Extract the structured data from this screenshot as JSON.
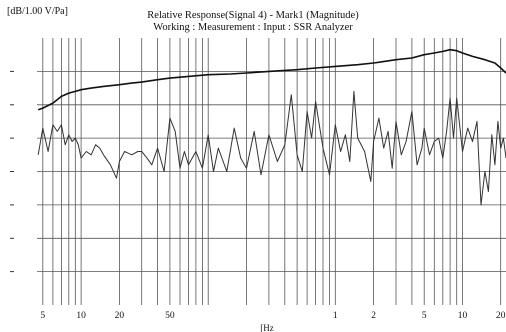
{
  "chart_data": {
    "type": "line",
    "title": "Relative Response(Signal 4) - Mark1 (Magnitude)",
    "subtitle": "Working : Measurement : Input : SSR Analyzer",
    "ylabel": "[dB/1.00 V/Pa]",
    "xlabel": "[Hz",
    "x_scale": "log",
    "xlim": [
      4.5,
      22000
    ],
    "ylim": [
      0,
      8
    ],
    "y_ticks": [
      1,
      2,
      3,
      4,
      5,
      6,
      7
    ],
    "x_tick_labels": [
      {
        "value": 5,
        "label": "5"
      },
      {
        "value": 10,
        "label": "10"
      },
      {
        "value": 20,
        "label": "20"
      },
      {
        "value": 50,
        "label": "50"
      },
      {
        "value": 1000,
        "label": "1"
      },
      {
        "value": 2000,
        "label": "2"
      },
      {
        "value": 5000,
        "label": "5"
      },
      {
        "value": 10000,
        "label": "10"
      },
      {
        "value": 20000,
        "label": "20"
      }
    ],
    "x_grid": [
      5,
      6,
      7,
      8,
      9,
      10,
      20,
      30,
      40,
      50,
      60,
      70,
      80,
      90,
      100,
      200,
      300,
      400,
      500,
      600,
      700,
      800,
      900,
      1000,
      2000,
      3000,
      4000,
      5000,
      6000,
      7000,
      8000,
      9000,
      10000,
      20000
    ],
    "grid": true,
    "series": [
      {
        "color": "#111111",
        "width": 1.6,
        "x": [
          4.6,
          5,
          6,
          7,
          8,
          9,
          10,
          12,
          15,
          20,
          25,
          30,
          40,
          50,
          70,
          100,
          150,
          200,
          300,
          500,
          700,
          1000,
          1500,
          2000,
          3000,
          4000,
          5000,
          6000,
          7000,
          8000,
          9000,
          10000,
          12000,
          15000,
          18000,
          20000,
          22000
        ],
        "y": [
          5.85,
          5.9,
          6.05,
          6.25,
          6.35,
          6.4,
          6.45,
          6.5,
          6.55,
          6.6,
          6.65,
          6.68,
          6.75,
          6.8,
          6.85,
          6.9,
          6.92,
          6.95,
          7.0,
          7.05,
          7.1,
          7.15,
          7.2,
          7.25,
          7.35,
          7.4,
          7.5,
          7.55,
          7.6,
          7.65,
          7.62,
          7.55,
          7.45,
          7.35,
          7.25,
          7.1,
          6.95
        ]
      },
      {
        "color": "#333333",
        "width": 1.0,
        "x": [
          4.6,
          5,
          5.5,
          6,
          6.5,
          7,
          7.5,
          8,
          8.5,
          9,
          9.5,
          10,
          11,
          12,
          13,
          14,
          15,
          17,
          19,
          20,
          22,
          25,
          28,
          30,
          33,
          36,
          40,
          45,
          50,
          55,
          60,
          65,
          70,
          80,
          90,
          100,
          110,
          120,
          140,
          160,
          180,
          200,
          230,
          260,
          300,
          350,
          400,
          450,
          500,
          550,
          600,
          650,
          700,
          800,
          900,
          1000,
          1100,
          1200,
          1300,
          1400,
          1500,
          1700,
          1900,
          2000,
          2200,
          2400,
          2600,
          2800,
          3000,
          3300,
          3600,
          4000,
          4400,
          4800,
          5000,
          5500,
          6000,
          6500,
          7000,
          7500,
          8000,
          8500,
          9000,
          10000,
          11000,
          12000,
          13000,
          14000,
          15000,
          16000,
          17000,
          18000,
          19000,
          20000,
          21000,
          22000
        ],
        "y": [
          4.5,
          5.3,
          4.6,
          5.4,
          5.2,
          5.4,
          4.8,
          5.1,
          4.9,
          5.0,
          4.8,
          4.4,
          4.6,
          4.5,
          4.8,
          4.7,
          4.5,
          4.2,
          3.8,
          4.3,
          4.6,
          4.5,
          4.6,
          4.6,
          4.4,
          4.2,
          4.7,
          4.0,
          5.6,
          5.2,
          4.1,
          4.6,
          4.2,
          4.6,
          4.1,
          5.1,
          4.0,
          4.7,
          4.0,
          5.3,
          4.4,
          4.1,
          5.2,
          3.9,
          5.1,
          4.3,
          4.8,
          6.3,
          4.5,
          4.0,
          5.8,
          5.0,
          6.1,
          4.7,
          3.9,
          5.4,
          4.6,
          5.1,
          4.3,
          6.4,
          5.0,
          4.6,
          3.7,
          4.9,
          5.6,
          4.7,
          5.2,
          4.1,
          5.5,
          4.5,
          4.9,
          5.8,
          4.2,
          4.7,
          5.3,
          4.5,
          4.9,
          5.0,
          4.4,
          5.2,
          6.2,
          5.0,
          6.2,
          4.6,
          5.3,
          4.9,
          5.5,
          3.0,
          4.0,
          3.4,
          5.1,
          4.2,
          5.5,
          4.7,
          5.0,
          4.4
        ]
      }
    ]
  }
}
